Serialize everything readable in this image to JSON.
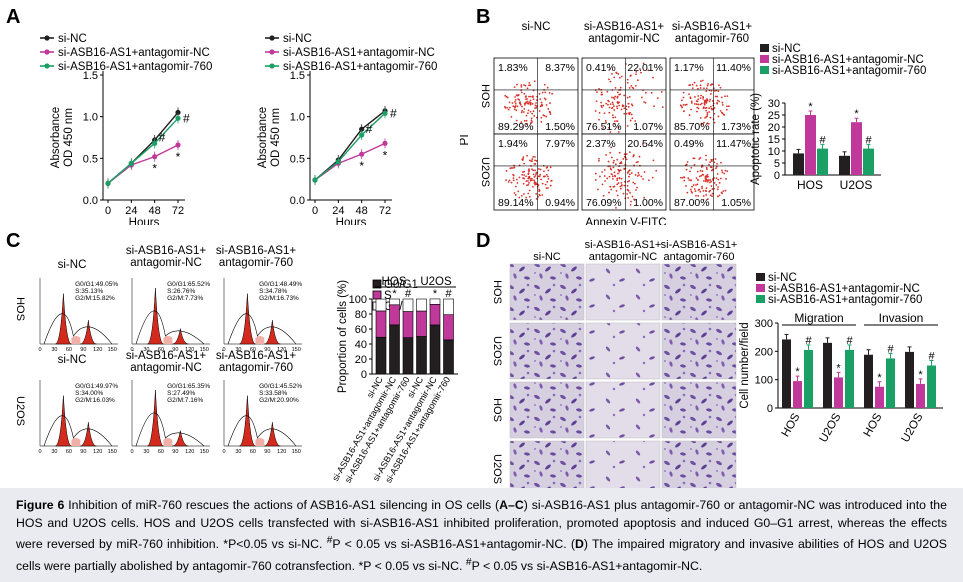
{
  "panels": {
    "A": {
      "letter": "A",
      "legend": [
        "si-NC",
        "si-ASB16-AS1+antagomir-NC",
        "si-ASB16-AS1+antagomir-760"
      ],
      "ylabel1": "Absorbance",
      "ylabel2": "OD 450 nm",
      "xlabel": "Hours",
      "yticks": [
        "0.0",
        "0.5",
        "1.0",
        "1.5"
      ],
      "xticks": [
        "0",
        "24",
        "48",
        "72"
      ],
      "plots": [
        {
          "cell": "HOS",
          "stars": [
            "*",
            "*"
          ],
          "hash": "#"
        },
        {
          "cell": "U2OS",
          "stars": [
            "*",
            "*"
          ],
          "hash": "#"
        }
      ]
    },
    "B": {
      "letter": "B",
      "cols": [
        "si-NC",
        "si-ASB16-AS1+",
        "si-ASB16-AS1+"
      ],
      "cols2": [
        "",
        "antagomir-NC",
        "antagomir-760"
      ],
      "rows": [
        "HOS",
        "U2OS"
      ],
      "ylabel": "PI",
      "xlabel": "Annexin V-FITC",
      "quadrants": [
        [
          [
            "1.83%",
            "8.37%",
            "89.29%",
            "1.50%"
          ],
          [
            "0.41%",
            "22.01%",
            "76.51%",
            "1.07%"
          ],
          [
            "1.17%",
            "11.40%",
            "85.70%",
            "1.73%"
          ]
        ],
        [
          [
            "1.94%",
            "7.97%",
            "89.14%",
            "0.94%"
          ],
          [
            "2.37%",
            "20.54%",
            "76.09%",
            "1.00%"
          ],
          [
            "0.49%",
            "11.47%",
            "87.00%",
            "1.05%"
          ]
        ]
      ],
      "legend": [
        "si-NC",
        "si-ASB16-AS1+antagomir-NC",
        "si-ASB16-AS1+antagomir-760"
      ],
      "ylabel_bar": "Apoptotic rate (%)",
      "yticks": [
        "0",
        "5",
        "10",
        "15",
        "20",
        "25",
        "30"
      ],
      "groups": [
        "HOS",
        "U2OS"
      ]
    },
    "C": {
      "letter": "C",
      "cols": [
        "si-NC",
        "si-ASB16-AS1+",
        "si-ASB16-AS1+"
      ],
      "cols2": [
        "",
        "antagomir-NC",
        "antagomir-760"
      ],
      "rows": [
        "HOS",
        "U2OS"
      ],
      "stats": [
        [
          [
            "G0/G1:49.05%",
            "S:35.13%",
            "G2/M:15.82%"
          ],
          [
            "G0/G1:65.52%",
            "S:26.76%",
            "G2/M:7.73%"
          ],
          [
            "G0/G1:48.49%",
            "S:34.78%",
            "G2/M:16.73%"
          ]
        ],
        [
          [
            "G0/G1:49.97%",
            "S:34.00%",
            "G2/M:16.03%"
          ],
          [
            "G0/G1:65.35%",
            "S:27.49%",
            "G2/M:7.16%"
          ],
          [
            "G0/G1:45.52%",
            "S:33.58%",
            "G2/M:20.90%"
          ]
        ]
      ],
      "legend": [
        "G0/G1",
        "S",
        "G2/M"
      ],
      "ylabel": "Proportion of cells (%)",
      "yticks": [
        "0",
        "20",
        "40",
        "60",
        "80",
        "100"
      ],
      "groups": [
        "HOS",
        "U2OS"
      ],
      "xcats": [
        "si-NC",
        "si-ASB16-AS1+antagomir-NC",
        "si-ASB16-AS1+antagomir-760",
        "si-NC",
        "si-ASB16-AS1+antagomir-NC",
        "si-ASB16-AS1+antagomir-760"
      ]
    },
    "D": {
      "letter": "D",
      "cols": [
        "si-NC",
        "si-ASB16-AS1+",
        "si-ASB16-AS1+"
      ],
      "cols2": [
        "",
        "antagomir-NC",
        "antagomir-760"
      ],
      "rows": [
        "HOS",
        "U2OS",
        "HOS",
        "U2OS"
      ],
      "legend": [
        "si-NC",
        "si-ASB16-AS1+antagomir-NC",
        "si-ASB16-AS1+antagomir-760"
      ],
      "ylabel": "Cell number/field",
      "yticks": [
        "0",
        "100",
        "200",
        "300"
      ],
      "groups_top": [
        "Migration",
        "Invasion"
      ],
      "xcats": [
        "HOS",
        "U2OS",
        "HOS",
        "U2OS"
      ]
    }
  },
  "colors": {
    "sinc": "#231f20",
    "nc": "#c0399a",
    "m760": "#1aa065",
    "flow": "#d8322a",
    "hist": "#d42a1e",
    "crystal": "#7a5aa8"
  },
  "chart_data": [
    {
      "type": "line",
      "title": "",
      "panel": "A-HOS",
      "x": [
        0,
        24,
        48,
        72
      ],
      "xlabel": "Hours",
      "ylabel": "Absorbance OD 450 nm",
      "ylim": [
        0,
        1.5
      ],
      "series": [
        {
          "name": "si-NC",
          "values": [
            0.2,
            0.44,
            0.72,
            1.05
          ]
        },
        {
          "name": "si-ASB16-AS1+antagomir-NC",
          "values": [
            0.2,
            0.42,
            0.52,
            0.66
          ]
        },
        {
          "name": "si-ASB16-AS1+antagomir-760",
          "values": [
            0.2,
            0.44,
            0.68,
            0.98
          ]
        }
      ]
    },
    {
      "type": "line",
      "title": "",
      "panel": "A-U2OS",
      "x": [
        0,
        24,
        48,
        72
      ],
      "xlabel": "Hours",
      "ylabel": "Absorbance OD 450 nm",
      "ylim": [
        0,
        1.5
      ],
      "series": [
        {
          "name": "si-NC",
          "values": [
            0.24,
            0.48,
            0.85,
            1.07
          ]
        },
        {
          "name": "si-ASB16-AS1+antagomir-NC",
          "values": [
            0.24,
            0.44,
            0.55,
            0.68
          ]
        },
        {
          "name": "si-ASB16-AS1+antagomir-760",
          "values": [
            0.24,
            0.46,
            0.78,
            1.04
          ]
        }
      ]
    },
    {
      "type": "bar",
      "title": "",
      "panel": "B",
      "categories": [
        "HOS",
        "U2OS"
      ],
      "ylabel": "Apoptotic rate (%)",
      "ylim": [
        0,
        30
      ],
      "series": [
        {
          "name": "si-NC",
          "values": [
            9,
            8
          ]
        },
        {
          "name": "si-ASB16-AS1+antagomir-NC",
          "values": [
            25,
            22
          ]
        },
        {
          "name": "si-ASB16-AS1+antagomir-760",
          "values": [
            11,
            11
          ]
        }
      ]
    },
    {
      "type": "bar",
      "title": "",
      "panel": "C",
      "stacked": true,
      "categories": [
        "si-NC",
        "si-ASB16-AS1+antagomir-NC",
        "si-ASB16-AS1+antagomir-760",
        "si-NC",
        "si-ASB16-AS1+antagomir-NC",
        "si-ASB16-AS1+antagomir-760"
      ],
      "ylabel": "Proportion of cells (%)",
      "ylim": [
        0,
        100
      ],
      "series": [
        {
          "name": "G0/G1",
          "values": [
            49,
            65.5,
            48.5,
            50,
            65.4,
            45.5
          ]
        },
        {
          "name": "S",
          "values": [
            35.1,
            26.8,
            34.8,
            34,
            27.5,
            33.6
          ]
        },
        {
          "name": "G2/M",
          "values": [
            15.8,
            7.7,
            16.7,
            16,
            7.2,
            20.9
          ]
        }
      ]
    },
    {
      "type": "bar",
      "title": "",
      "panel": "D",
      "categories": [
        "HOS",
        "U2OS",
        "HOS",
        "U2OS"
      ],
      "ylabel": "Cell number/field",
      "ylim": [
        0,
        300
      ],
      "series": [
        {
          "name": "si-NC",
          "values": [
            242,
            230,
            188,
            198
          ]
        },
        {
          "name": "si-ASB16-AS1+antagomir-NC",
          "values": [
            95,
            108,
            75,
            85
          ]
        },
        {
          "name": "si-ASB16-AS1+antagomir-760",
          "values": [
            205,
            205,
            175,
            150
          ]
        }
      ]
    }
  ],
  "caption": {
    "fig": "Figure 6",
    "p1": " Inhibition of miR-760 rescues the actions of ASB16-AS1 silencing in OS cells (",
    "b1": "A–C",
    "p2": ") si-ASB16-AS1 plus antagomir-760 or antagomir-NC was introduced into the HOS and U2OS cells. HOS and U2OS cells transfected with si-ASB16-AS1 inhibited proliferation, promoted apoptosis and induced G0–G1 arrest, whereas the effects were reversed by miR-760 inhibition. *P<0.05 vs si-NC. ",
    "sup1": "#",
    "p3": "P < 0.05 vs si-ASB16-AS1+antagomir-NC. (",
    "b2": "D",
    "p4": ") The impaired migratory and invasive abilities of HOS and U2OS cells were partially abolished by antagomir-760 cotransfection. *P < 0.05 vs si-NC. ",
    "sup2": "#",
    "p5": "P < 0.05 vs si-ASB16-AS1+antagomir-NC."
  }
}
